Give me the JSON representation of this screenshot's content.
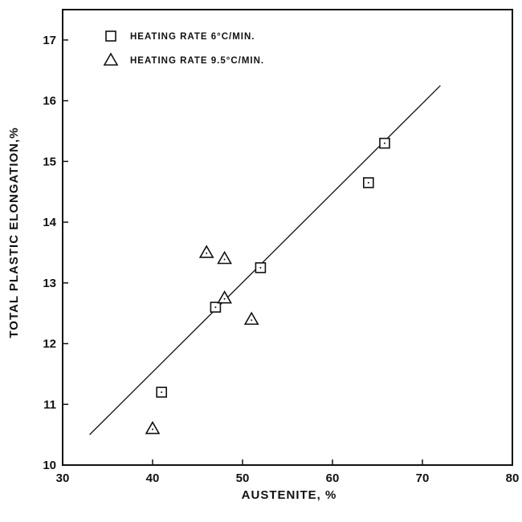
{
  "chart_data": {
    "type": "scatter",
    "xlabel": "AUSTENITE, %",
    "ylabel": "TOTAL PLASTIC ELONGATION,%",
    "xlim": [
      30,
      80
    ],
    "ylim": [
      10,
      17.5
    ],
    "x_ticks": [
      30,
      40,
      50,
      60,
      70,
      80
    ],
    "y_ticks": [
      10,
      11,
      12,
      13,
      14,
      15,
      16,
      17
    ],
    "grid": false,
    "legend_position": "top-left",
    "series": [
      {
        "name": "HEATING RATE 6°C/MIN.",
        "marker": "square",
        "points": [
          {
            "x": 41,
            "y": 11.2
          },
          {
            "x": 47,
            "y": 12.6
          },
          {
            "x": 52,
            "y": 13.25
          },
          {
            "x": 64,
            "y": 14.65
          },
          {
            "x": 65.8,
            "y": 15.3
          }
        ]
      },
      {
        "name": "HEATING RATE 9.5°C/MIN.",
        "marker": "triangle",
        "points": [
          {
            "x": 40,
            "y": 10.6
          },
          {
            "x": 46,
            "y": 13.5
          },
          {
            "x": 48,
            "y": 13.4
          },
          {
            "x": 48,
            "y": 12.75
          },
          {
            "x": 51,
            "y": 12.4
          }
        ]
      }
    ],
    "fit_line": {
      "type": "linear",
      "points": [
        {
          "x": 33,
          "y": 10.5
        },
        {
          "x": 72,
          "y": 16.25
        }
      ]
    }
  },
  "legend": [
    {
      "marker": "square",
      "label": "HEATING RATE 6°C/MIN."
    },
    {
      "marker": "triangle",
      "label": "HEATING RATE 9.5°C/MIN."
    }
  ]
}
